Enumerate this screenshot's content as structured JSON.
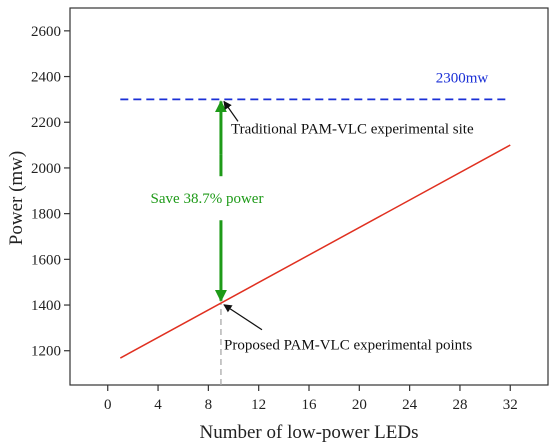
{
  "chart_data": {
    "type": "line",
    "title": "",
    "xlabel": "Number of low-power LEDs",
    "ylabel": "Power (mw)",
    "xlim": [
      -3,
      35
    ],
    "ylim": [
      1050,
      2700
    ],
    "x_ticks": [
      0,
      4,
      8,
      12,
      16,
      20,
      24,
      28,
      32
    ],
    "y_ticks": [
      1200,
      1400,
      1600,
      1800,
      2000,
      2200,
      2400,
      2600
    ],
    "grid": false,
    "series": [
      {
        "name": "",
        "style": "solid",
        "color": "#e03020",
        "x": [
          1,
          32
        ],
        "y": [
          1168,
          2100
        ]
      },
      {
        "name": "",
        "style": "dashed",
        "color": "#1a2fd6",
        "x": [
          1,
          32
        ],
        "y": [
          2300,
          2300
        ]
      }
    ],
    "reference_line": {
      "x": 9,
      "y_from": 1050,
      "y_to": 1410,
      "style": "dashed",
      "color": "#aaaaaa"
    },
    "arrow": {
      "x": 9,
      "y_top": 2300,
      "y_bottom": 1410,
      "color": "#1e9a18"
    },
    "annotations": {
      "level_label": {
        "text": "2300mw",
        "color": "#1a2fd6"
      },
      "saving_label": {
        "text": "Save 38.7% power",
        "color": "#1e9a18"
      },
      "traditional_label": {
        "text": "Traditional PAM-VLC experimental site",
        "point_x": 9,
        "point_y": 2300
      },
      "proposed_label": {
        "text": "Proposed PAM-VLC experimental points",
        "point_x": 9,
        "point_y": 1410
      }
    }
  }
}
